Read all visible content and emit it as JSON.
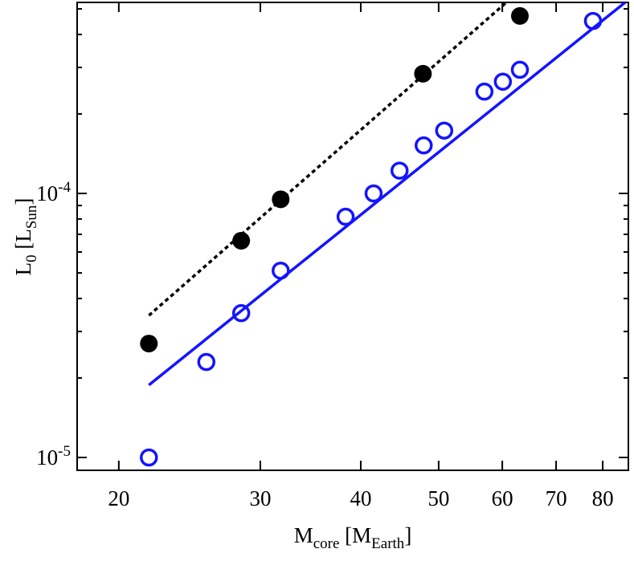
{
  "chart_data": {
    "type": "scatter",
    "xlabel_parts": [
      {
        "text": "M"
      },
      {
        "text": "core",
        "sub": true
      },
      {
        "text": " [M"
      },
      {
        "text": "Earth",
        "sub": true
      },
      {
        "text": "]"
      }
    ],
    "ylabel_parts": [
      {
        "text": "L"
      },
      {
        "text": "0",
        "sub": true
      },
      {
        "text": " [L"
      },
      {
        "text": "Sun",
        "sub": true
      },
      {
        "text": "]"
      }
    ],
    "xscale": "log",
    "yscale": "log",
    "xlim": [
      17.75,
      86.1
    ],
    "ylim": [
      8.94e-06,
      0.000529
    ],
    "xticks": [
      20,
      30,
      40,
      50,
      60,
      70,
      80
    ],
    "yticks": [
      {
        "value": 1e-05,
        "label": "10-5"
      },
      {
        "value": 0.0001,
        "label": "10-4"
      }
    ],
    "yminorticks": [
      2e-05,
      3e-05,
      4e-05,
      5e-05,
      6e-05,
      7e-05,
      8e-05,
      9e-05,
      0.0002,
      0.0003,
      0.0004,
      0.0005
    ],
    "series": [
      {
        "mode": "markers",
        "marker": "filled",
        "color": "#000000",
        "x": [
          21.8,
          28.4,
          31.8,
          47.8,
          63.1
        ],
        "values": [
          2.7e-05,
          6.62e-05,
          9.5e-05,
          0.000284,
          0.00047
        ]
      },
      {
        "mode": "markers",
        "marker": "open",
        "color": "#1414ff",
        "x": [
          21.8,
          25.7,
          28.4,
          31.8,
          38.3,
          41.5,
          44.7,
          47.9,
          50.8,
          57.0,
          60.1,
          63.1,
          77.8
        ],
        "values": [
          1e-05,
          2.3e-05,
          3.52e-05,
          5.1e-05,
          8.16e-05,
          0.0001,
          0.000122,
          0.000152,
          0.000173,
          0.000243,
          0.000265,
          0.000294,
          0.00045
        ]
      },
      {
        "mode": "line",
        "dash": "dotted",
        "color": "#000000",
        "x": [
          21.8,
          60.7
        ],
        "values": [
          3.45e-05,
          0.000529
        ]
      },
      {
        "mode": "line",
        "dash": "solid",
        "color": "#1414ff",
        "x": [
          21.8,
          85.3
        ],
        "values": [
          1.88e-05,
          0.000529
        ]
      }
    ]
  }
}
